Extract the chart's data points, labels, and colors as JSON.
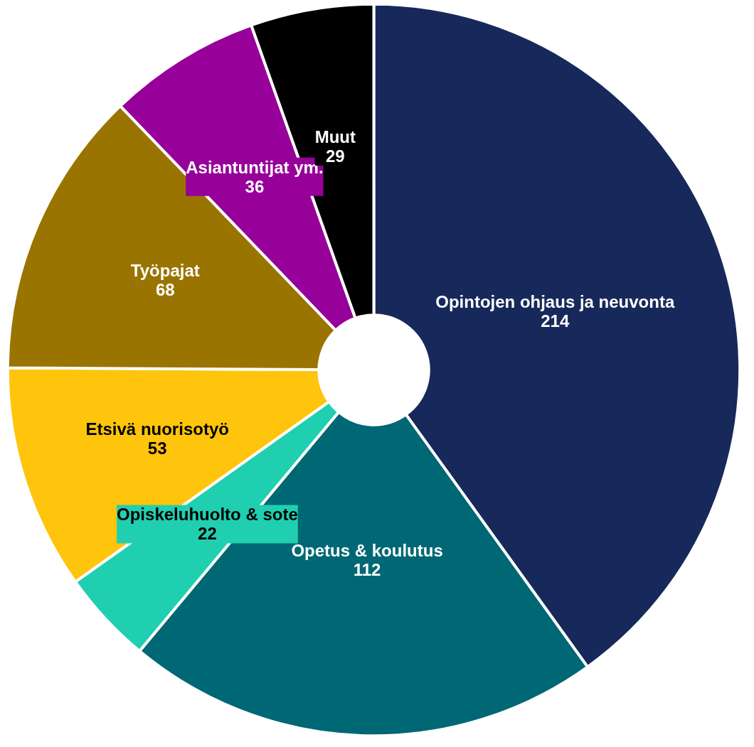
{
  "chart_data": {
    "type": "donut",
    "categories": [
      "Opintojen ohjaus ja neuvonta",
      "Opetus & koulutus",
      "Opiskeluhuolto & sote",
      "Etsivä nuorisotyö",
      "Työpajat",
      "Asiantuntijat ym.",
      "Muut"
    ],
    "values": [
      214,
      112,
      22,
      53,
      68,
      36,
      29
    ],
    "colors": [
      "#17285a",
      "#006775",
      "#20cfb0",
      "#ffc40c",
      "#9a7400",
      "#970099",
      "#000000"
    ],
    "data_labels": true
  }
}
